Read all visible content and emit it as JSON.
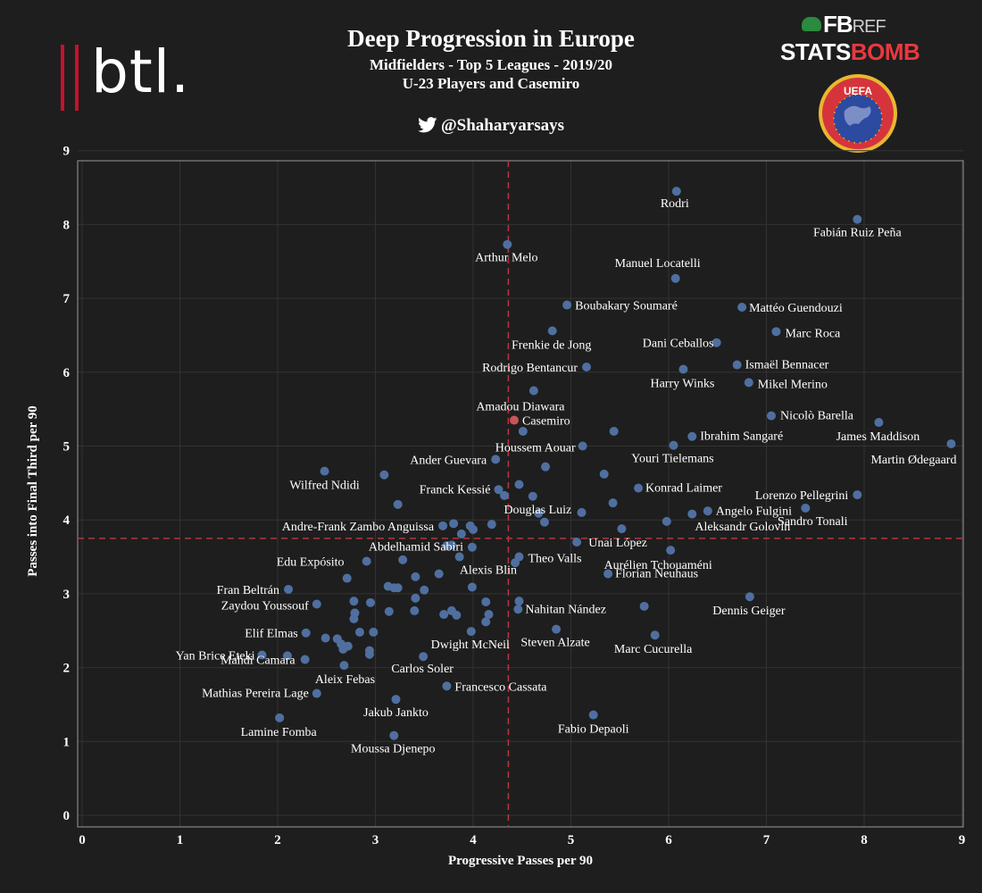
{
  "header": {
    "title": "Deep Progression in Europe",
    "subtitle1": "Midfielders - Top 5 Leagues - 2019/20",
    "subtitle2": "U-23 Players and Casemiro",
    "handle": "@Shaharyarsays"
  },
  "logos": {
    "btl": "btl.",
    "fbref_fb": "FB",
    "fbref_ref": "REF",
    "statsbomb_stats": "STATS",
    "statsbomb_bomb": "BOMB",
    "uefa": "UEFA"
  },
  "colors": {
    "background": "#1e1e1e",
    "point": "#4f6fa0",
    "highlight": "#c9545a",
    "reference_line": "#b5343a",
    "grid": "#333333"
  },
  "chart_data": {
    "type": "scatter",
    "xlabel": "Progressive Passes per 90",
    "ylabel": "Passes into Final Third per 90",
    "xlim": [
      0,
      9
    ],
    "ylim": [
      0,
      9
    ],
    "xticks": [
      "0",
      "1",
      "2",
      "3",
      "4",
      "5",
      "6",
      "7",
      "8",
      "9"
    ],
    "yticks": [
      "0",
      "1",
      "2",
      "3",
      "4",
      "5",
      "6",
      "7",
      "8",
      "9"
    ],
    "grid": true,
    "reference_lines": {
      "x": 4.36,
      "y": 3.75
    },
    "highlight": "Casemiro",
    "points": [
      {
        "label": "Rodri",
        "x": 6.08,
        "y": 8.45
      },
      {
        "label": "Fabián Ruiz Peña",
        "x": 7.93,
        "y": 8.07
      },
      {
        "label": "Arthur Melo",
        "x": 4.35,
        "y": 7.73
      },
      {
        "label": "Manuel Locatelli",
        "x": 6.07,
        "y": 7.27
      },
      {
        "label": "Boubakary Soumaré",
        "x": 4.96,
        "y": 6.91
      },
      {
        "label": "Mattéo Guendouzi",
        "x": 6.75,
        "y": 6.88
      },
      {
        "label": "Frenkie de Jong",
        "x": 4.81,
        "y": 6.56
      },
      {
        "label": "Marc Roca",
        "x": 7.1,
        "y": 6.55
      },
      {
        "label": "Dani Ceballos",
        "x": 6.49,
        "y": 6.4
      },
      {
        "label": "Ismaël Bennacer",
        "x": 6.7,
        "y": 6.1
      },
      {
        "label": "Rodrigo Bentancur",
        "x": 5.16,
        "y": 6.07
      },
      {
        "label": "Harry Winks",
        "x": 6.15,
        "y": 6.04
      },
      {
        "label": "Mikel Merino",
        "x": 6.82,
        "y": 5.86
      },
      {
        "label": "Amadou Diawara",
        "x": 4.62,
        "y": 5.75
      },
      {
        "label": "Nicolò Barella",
        "x": 7.05,
        "y": 5.41
      },
      {
        "label": "Casemiro",
        "x": 4.42,
        "y": 5.35
      },
      {
        "label": "James Maddison",
        "x": 8.15,
        "y": 5.32
      },
      {
        "label": "Ibrahim Sangaré",
        "x": 6.24,
        "y": 5.13
      },
      {
        "label": "Houssem Aouar",
        "x": 5.12,
        "y": 5.0
      },
      {
        "label": "Youri Tielemans",
        "x": 6.05,
        "y": 5.01
      },
      {
        "label": "Martin Ødegaard",
        "x": 8.89,
        "y": 5.03
      },
      {
        "label": "Ander Guevara",
        "x": 4.23,
        "y": 4.82
      },
      {
        "label": "Wilfred Ndidi",
        "x": 2.48,
        "y": 4.66
      },
      {
        "label": "Franck Kessié",
        "x": 4.26,
        "y": 4.41
      },
      {
        "label": "Konrad Laimer",
        "x": 5.69,
        "y": 4.43
      },
      {
        "label": "Lorenzo Pellegrini",
        "x": 7.93,
        "y": 4.34
      },
      {
        "label": "Angelo Fulgini",
        "x": 6.4,
        "y": 4.12
      },
      {
        "label": "Sandro Tonali",
        "x": 7.4,
        "y": 4.16
      },
      {
        "label": "Douglas Luiz",
        "x": 4.67,
        "y": 4.09
      },
      {
        "label": "Andre-Frank Zambo Anguissa",
        "x": 3.69,
        "y": 3.92
      },
      {
        "label": "Aleksandr Golovin",
        "x": 5.98,
        "y": 3.98
      },
      {
        "label": "Unai López",
        "x": 5.06,
        "y": 3.7
      },
      {
        "label": "Abdelhamid Sabiri",
        "x": 3.78,
        "y": 3.66
      },
      {
        "label": "Theo Valls",
        "x": 4.47,
        "y": 3.5
      },
      {
        "label": "Aurélien Tchouaméni",
        "x": 6.02,
        "y": 3.59
      },
      {
        "label": "Edu Expósito",
        "x": 2.91,
        "y": 3.44
      },
      {
        "label": "Alexis Blin",
        "x": 3.99,
        "y": 3.09
      },
      {
        "label": "Florian Neuhaus",
        "x": 5.38,
        "y": 3.27
      },
      {
        "label": "Fran Beltrán",
        "x": 2.11,
        "y": 3.06
      },
      {
        "label": "Dennis Geiger",
        "x": 6.83,
        "y": 2.96
      },
      {
        "label": "Zaydou Youssouf",
        "x": 2.4,
        "y": 2.86
      },
      {
        "label": "Nahitan Nández",
        "x": 4.46,
        "y": 2.79
      },
      {
        "label": "Elif Elmas",
        "x": 2.29,
        "y": 2.47
      },
      {
        "label": "Steven Alzate",
        "x": 4.85,
        "y": 2.52
      },
      {
        "label": "Marc Cucurella",
        "x": 5.86,
        "y": 2.44
      },
      {
        "label": "Dwight McNeil",
        "x": 3.98,
        "y": 2.49
      },
      {
        "label": "Yan Brice Eteki",
        "x": 1.84,
        "y": 2.17
      },
      {
        "label": "Carlos Soler",
        "x": 3.49,
        "y": 2.15
      },
      {
        "label": "Mahdi Camara",
        "x": 2.28,
        "y": 2.11
      },
      {
        "label": "Aleix Febas",
        "x": 2.68,
        "y": 2.03
      },
      {
        "label": "Francesco Cassata",
        "x": 3.73,
        "y": 1.75
      },
      {
        "label": "Mathias Pereira Lage",
        "x": 2.4,
        "y": 1.65
      },
      {
        "label": "Jakub Jankto",
        "x": 3.21,
        "y": 1.57
      },
      {
        "label": "Fabio Depaoli",
        "x": 5.23,
        "y": 1.36
      },
      {
        "label": "Lamine Fomba",
        "x": 2.02,
        "y": 1.32
      },
      {
        "label": "Moussa Djenepo",
        "x": 3.19,
        "y": 1.08
      },
      {
        "label": "",
        "x": 3.09,
        "y": 4.61
      },
      {
        "label": "",
        "x": 3.23,
        "y": 4.21
      },
      {
        "label": "",
        "x": 4.47,
        "y": 4.48
      },
      {
        "label": "",
        "x": 4.61,
        "y": 4.32
      },
      {
        "label": "",
        "x": 4.32,
        "y": 4.33
      },
      {
        "label": "",
        "x": 4.74,
        "y": 4.72
      },
      {
        "label": "",
        "x": 4.51,
        "y": 5.2
      },
      {
        "label": "",
        "x": 5.44,
        "y": 5.2
      },
      {
        "label": "",
        "x": 5.34,
        "y": 4.62
      },
      {
        "label": "",
        "x": 5.43,
        "y": 4.23
      },
      {
        "label": "",
        "x": 5.11,
        "y": 4.1
      },
      {
        "label": "",
        "x": 4.73,
        "y": 3.97
      },
      {
        "label": "",
        "x": 4.19,
        "y": 3.94
      },
      {
        "label": "",
        "x": 3.8,
        "y": 3.95
      },
      {
        "label": "",
        "x": 3.97,
        "y": 3.92
      },
      {
        "label": "",
        "x": 4.0,
        "y": 3.87
      },
      {
        "label": "",
        "x": 3.88,
        "y": 3.81
      },
      {
        "label": "",
        "x": 3.73,
        "y": 3.65
      },
      {
        "label": "",
        "x": 3.99,
        "y": 3.63
      },
      {
        "label": "",
        "x": 5.52,
        "y": 3.88
      },
      {
        "label": "",
        "x": 6.24,
        "y": 4.08
      },
      {
        "label": "",
        "x": 3.86,
        "y": 3.5
      },
      {
        "label": "",
        "x": 4.43,
        "y": 3.42
      },
      {
        "label": "",
        "x": 3.28,
        "y": 3.46
      },
      {
        "label": "",
        "x": 3.41,
        "y": 3.23
      },
      {
        "label": "",
        "x": 3.65,
        "y": 3.27
      },
      {
        "label": "",
        "x": 3.13,
        "y": 3.1
      },
      {
        "label": "",
        "x": 3.19,
        "y": 3.08
      },
      {
        "label": "",
        "x": 3.23,
        "y": 3.08
      },
      {
        "label": "",
        "x": 3.5,
        "y": 3.05
      },
      {
        "label": "",
        "x": 2.71,
        "y": 3.21
      },
      {
        "label": "",
        "x": 3.41,
        "y": 2.94
      },
      {
        "label": "",
        "x": 4.13,
        "y": 2.89
      },
      {
        "label": "",
        "x": 4.47,
        "y": 2.9
      },
      {
        "label": "",
        "x": 2.78,
        "y": 2.9
      },
      {
        "label": "",
        "x": 2.95,
        "y": 2.88
      },
      {
        "label": "",
        "x": 3.14,
        "y": 2.76
      },
      {
        "label": "",
        "x": 3.4,
        "y": 2.77
      },
      {
        "label": "",
        "x": 3.7,
        "y": 2.72
      },
      {
        "label": "",
        "x": 3.78,
        "y": 2.77
      },
      {
        "label": "",
        "x": 3.83,
        "y": 2.71
      },
      {
        "label": "",
        "x": 4.16,
        "y": 2.72
      },
      {
        "label": "",
        "x": 4.13,
        "y": 2.62
      },
      {
        "label": "",
        "x": 2.79,
        "y": 2.74
      },
      {
        "label": "",
        "x": 2.78,
        "y": 2.66
      },
      {
        "label": "",
        "x": 5.75,
        "y": 2.83
      },
      {
        "label": "",
        "x": 2.84,
        "y": 2.48
      },
      {
        "label": "",
        "x": 2.98,
        "y": 2.48
      },
      {
        "label": "",
        "x": 2.49,
        "y": 2.4
      },
      {
        "label": "",
        "x": 2.61,
        "y": 2.39
      },
      {
        "label": "",
        "x": 2.65,
        "y": 2.32
      },
      {
        "label": "",
        "x": 2.67,
        "y": 2.25
      },
      {
        "label": "",
        "x": 2.94,
        "y": 2.23
      },
      {
        "label": "",
        "x": 2.94,
        "y": 2.18
      },
      {
        "label": "",
        "x": 2.1,
        "y": 2.16
      },
      {
        "label": "",
        "x": 2.72,
        "y": 2.29
      }
    ]
  }
}
